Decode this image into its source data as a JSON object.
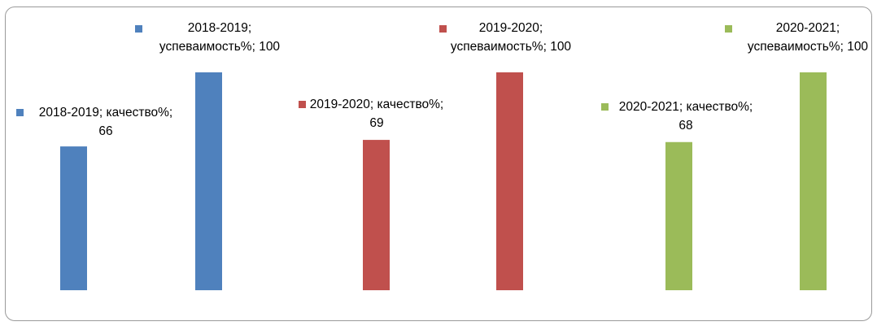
{
  "chart_data": {
    "type": "bar",
    "ylim": [
      0,
      100
    ],
    "grid": false,
    "series": [
      {
        "name": "2018-2019",
        "color": "#4f81bd",
        "points": [
          {
            "metric": "качество%",
            "value": 66,
            "label": [
              "2018-2019; качество%;",
              "66"
            ]
          },
          {
            "metric": "успеваимость%",
            "value": 100,
            "label": [
              "2018-2019;",
              "успеваимость%; 100"
            ]
          }
        ]
      },
      {
        "name": "2019-2020",
        "color": "#c0504d",
        "points": [
          {
            "metric": "качество%",
            "value": 69,
            "label": [
              "2019-2020; качество%;",
              "69"
            ]
          },
          {
            "metric": "успеваимость%",
            "value": 100,
            "label": [
              "2019-2020;",
              "успеваимость%; 100"
            ]
          }
        ]
      },
      {
        "name": "2020-2021",
        "color": "#9bbb59",
        "points": [
          {
            "metric": "качество%",
            "value": 68,
            "label": [
              "2020-2021; качество%;",
              "68"
            ]
          },
          {
            "metric": "успеваимость%",
            "value": 100,
            "label": [
              "2020-2021;",
              "успеваимость%; 100"
            ]
          }
        ]
      }
    ]
  }
}
